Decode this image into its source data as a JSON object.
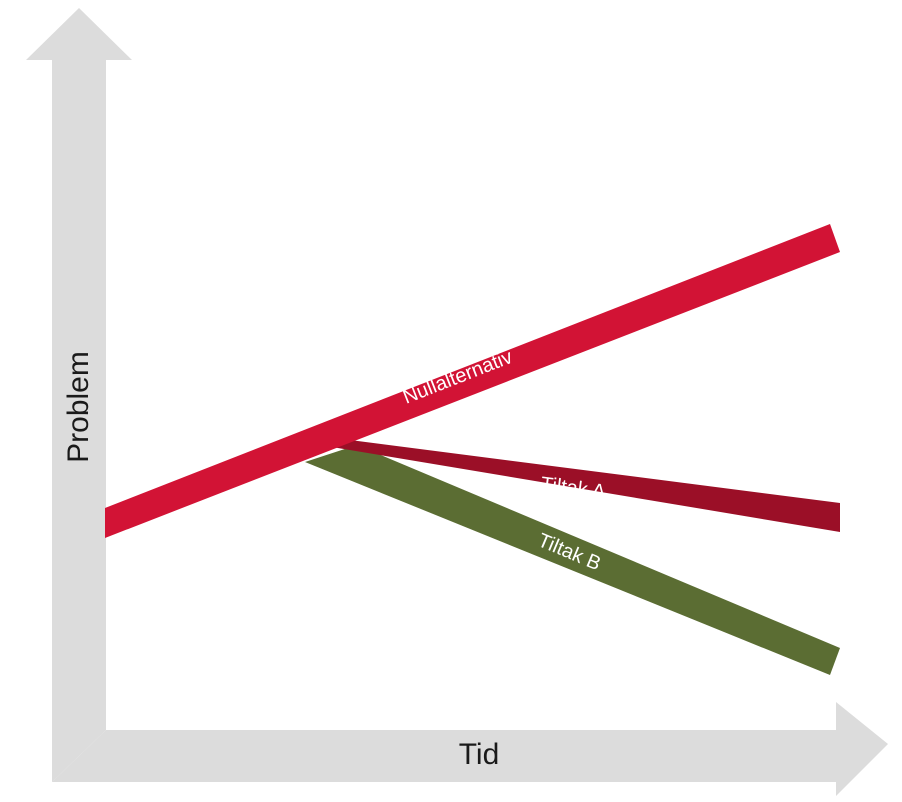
{
  "axes": {
    "y_label": "Problem",
    "x_label": "Tid",
    "color": "#dcdcdc"
  },
  "lines": [
    {
      "name": "nullalternativ",
      "label": "Nullalternativ",
      "color": "#d21335"
    },
    {
      "name": "tiltak-a",
      "label": "Tiltak A",
      "color": "#9b0f27"
    },
    {
      "name": "tiltak-b",
      "label": "Tiltak B",
      "color": "#5b6d33"
    }
  ]
}
